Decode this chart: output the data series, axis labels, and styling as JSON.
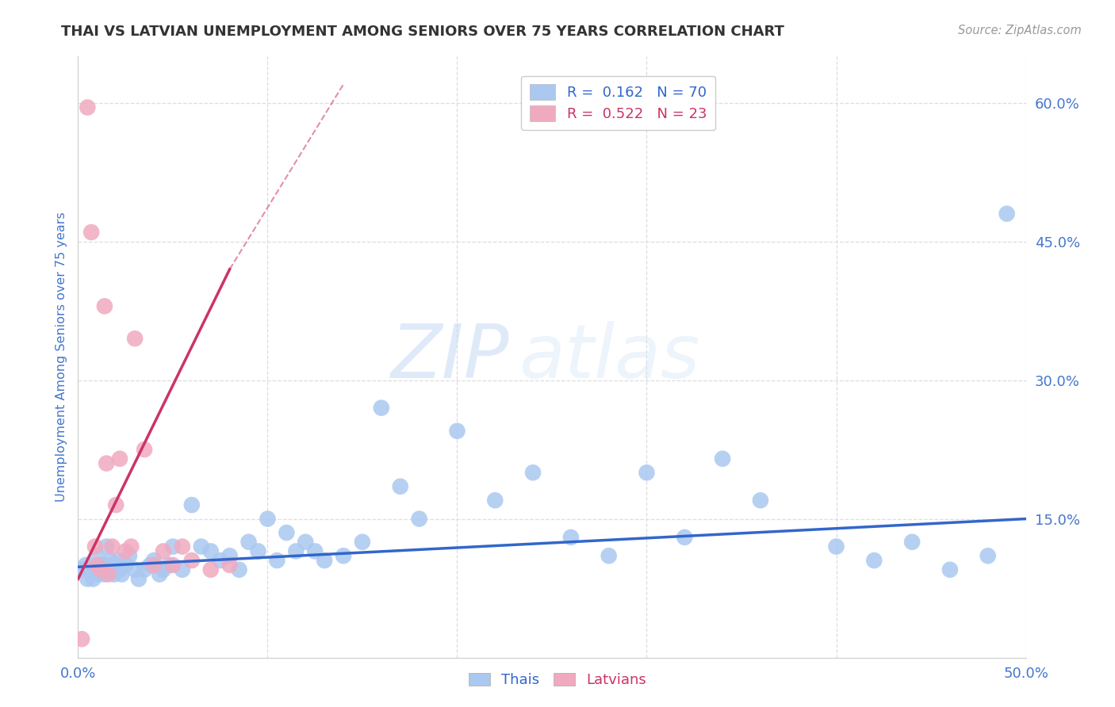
{
  "title": "THAI VS LATVIAN UNEMPLOYMENT AMONG SENIORS OVER 75 YEARS CORRELATION CHART",
  "source": "Source: ZipAtlas.com",
  "ylabel": "Unemployment Among Seniors over 75 years",
  "xlim": [
    0.0,
    0.5
  ],
  "ylim": [
    0.0,
    0.65
  ],
  "xticks": [
    0.0,
    0.1,
    0.2,
    0.3,
    0.4,
    0.5
  ],
  "yticks": [
    0.0,
    0.15,
    0.3,
    0.45,
    0.6
  ],
  "ytick_labels": [
    "",
    "15.0%",
    "30.0%",
    "45.0%",
    "60.0%"
  ],
  "xtick_labels": [
    "0.0%",
    "",
    "",
    "",
    "",
    "50.0%"
  ],
  "thai_color": "#aac8f0",
  "latvian_color": "#f0aac0",
  "thai_line_color": "#3366cc",
  "latvian_line_color": "#cc3366",
  "background_color": "#ffffff",
  "grid_color": "#dddddd",
  "watermark_zip": "ZIP",
  "watermark_atlas": "atlas",
  "title_color": "#333333",
  "axis_label_color": "#4477cc",
  "tick_label_color": "#4477cc",
  "source_color": "#999999",
  "thai_x": [
    0.002,
    0.004,
    0.005,
    0.006,
    0.007,
    0.008,
    0.009,
    0.01,
    0.01,
    0.011,
    0.012,
    0.013,
    0.014,
    0.015,
    0.015,
    0.016,
    0.017,
    0.018,
    0.019,
    0.02,
    0.021,
    0.022,
    0.023,
    0.025,
    0.027,
    0.03,
    0.032,
    0.035,
    0.038,
    0.04,
    0.043,
    0.045,
    0.048,
    0.05,
    0.055,
    0.06,
    0.065,
    0.07,
    0.075,
    0.08,
    0.085,
    0.09,
    0.095,
    0.1,
    0.105,
    0.11,
    0.115,
    0.12,
    0.125,
    0.13,
    0.14,
    0.15,
    0.16,
    0.17,
    0.18,
    0.2,
    0.22,
    0.24,
    0.26,
    0.28,
    0.3,
    0.32,
    0.34,
    0.36,
    0.4,
    0.42,
    0.44,
    0.46,
    0.48,
    0.49
  ],
  "thai_y": [
    0.095,
    0.1,
    0.085,
    0.095,
    0.09,
    0.085,
    0.095,
    0.11,
    0.095,
    0.09,
    0.1,
    0.095,
    0.09,
    0.12,
    0.1,
    0.095,
    0.105,
    0.095,
    0.09,
    0.1,
    0.105,
    0.095,
    0.09,
    0.1,
    0.11,
    0.095,
    0.085,
    0.095,
    0.1,
    0.105,
    0.09,
    0.095,
    0.1,
    0.12,
    0.095,
    0.165,
    0.12,
    0.115,
    0.105,
    0.11,
    0.095,
    0.125,
    0.115,
    0.15,
    0.105,
    0.135,
    0.115,
    0.125,
    0.115,
    0.105,
    0.11,
    0.125,
    0.27,
    0.185,
    0.15,
    0.245,
    0.17,
    0.2,
    0.13,
    0.11,
    0.2,
    0.13,
    0.215,
    0.17,
    0.12,
    0.105,
    0.125,
    0.095,
    0.11,
    0.48
  ],
  "latvian_x": [
    0.002,
    0.005,
    0.007,
    0.009,
    0.01,
    0.012,
    0.014,
    0.015,
    0.016,
    0.018,
    0.02,
    0.022,
    0.025,
    0.028,
    0.03,
    0.035,
    0.04,
    0.045,
    0.05,
    0.055,
    0.06,
    0.07,
    0.08
  ],
  "latvian_y": [
    0.02,
    0.595,
    0.46,
    0.12,
    0.1,
    0.095,
    0.38,
    0.21,
    0.09,
    0.12,
    0.165,
    0.215,
    0.115,
    0.12,
    0.345,
    0.225,
    0.1,
    0.115,
    0.1,
    0.12,
    0.105,
    0.095,
    0.1
  ],
  "thai_line_x0": 0.0,
  "thai_line_x1": 0.5,
  "thai_line_y0": 0.098,
  "thai_line_y1": 0.15,
  "latvian_line_solid_x0": 0.0,
  "latvian_line_solid_x1": 0.08,
  "latvian_line_solid_y0": 0.085,
  "latvian_line_solid_y1": 0.42,
  "latvian_line_dash_x0": 0.08,
  "latvian_line_dash_x1": 0.14,
  "latvian_line_dash_y0": 0.42,
  "latvian_line_dash_y1": 0.62
}
